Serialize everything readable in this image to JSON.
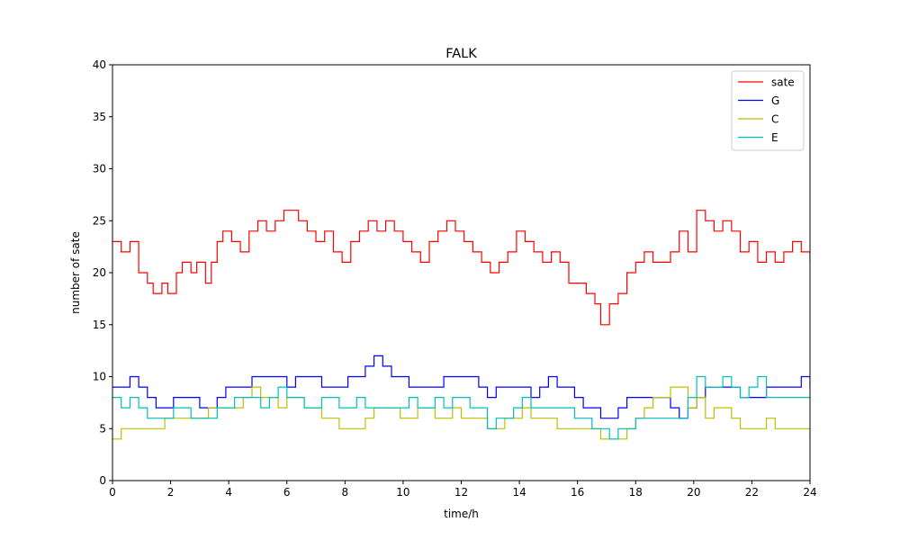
{
  "chart_data": {
    "type": "line",
    "title": "FALK",
    "xlabel": "time/h",
    "ylabel": "number of sate",
    "xlim": [
      0,
      24
    ],
    "ylim": [
      0,
      40
    ],
    "xticks": [
      0,
      2,
      4,
      6,
      8,
      10,
      12,
      14,
      16,
      18,
      20,
      22,
      24
    ],
    "yticks": [
      0,
      5,
      10,
      15,
      20,
      25,
      30,
      35,
      40
    ],
    "grid": false,
    "legend_position": "top-right",
    "series": [
      {
        "name": "sate",
        "color": "#ff0000",
        "x": [
          0,
          0.3,
          0.6,
          0.9,
          1.2,
          1.4,
          1.7,
          1.9,
          2.2,
          2.4,
          2.7,
          2.9,
          3.2,
          3.4,
          3.6,
          3.8,
          4.1,
          4.4,
          4.7,
          5.0,
          5.3,
          5.6,
          5.9,
          6.1,
          6.4,
          6.7,
          7.0,
          7.3,
          7.6,
          7.9,
          8.2,
          8.5,
          8.8,
          9.1,
          9.4,
          9.7,
          10.0,
          10.3,
          10.6,
          10.9,
          11.2,
          11.5,
          11.8,
          12.1,
          12.4,
          12.7,
          13.0,
          13.3,
          13.6,
          13.9,
          14.2,
          14.5,
          14.8,
          15.1,
          15.4,
          15.7,
          16.0,
          16.3,
          16.6,
          16.8,
          17.1,
          17.4,
          17.7,
          18.0,
          18.3,
          18.6,
          18.9,
          19.2,
          19.5,
          19.8,
          20.1,
          20.4,
          20.7,
          21.0,
          21.3,
          21.6,
          21.9,
          22.2,
          22.5,
          22.8,
          23.1,
          23.4,
          23.7,
          24.0
        ],
        "values": [
          23,
          22,
          23,
          20,
          19,
          18,
          19,
          18,
          20,
          21,
          20,
          21,
          19,
          21,
          23,
          24,
          23,
          22,
          24,
          25,
          24,
          25,
          26,
          26,
          25,
          24,
          23,
          24,
          22,
          21,
          23,
          24,
          25,
          24,
          25,
          24,
          23,
          22,
          21,
          23,
          24,
          25,
          24,
          23,
          22,
          21,
          20,
          21,
          22,
          24,
          23,
          22,
          21,
          22,
          21,
          19,
          19,
          18,
          17,
          15,
          17,
          18,
          20,
          21,
          22,
          21,
          21,
          22,
          24,
          22,
          26,
          25,
          24,
          25,
          24,
          22,
          23,
          21,
          22,
          21,
          22,
          23,
          22,
          21
        ]
      },
      {
        "name": "G",
        "color": "#0000ff",
        "x": [
          0,
          0.3,
          0.6,
          0.9,
          1.2,
          1.5,
          1.8,
          2.1,
          2.4,
          2.7,
          3.0,
          3.3,
          3.6,
          3.9,
          4.2,
          4.5,
          4.8,
          5.1,
          5.4,
          5.7,
          6.0,
          6.3,
          6.6,
          6.9,
          7.2,
          7.5,
          7.8,
          8.1,
          8.4,
          8.7,
          9.0,
          9.3,
          9.6,
          9.9,
          10.2,
          10.5,
          10.8,
          11.1,
          11.4,
          11.7,
          12.0,
          12.3,
          12.6,
          12.9,
          13.2,
          13.5,
          13.8,
          14.1,
          14.4,
          14.7,
          15.0,
          15.3,
          15.6,
          15.9,
          16.2,
          16.5,
          16.8,
          17.1,
          17.4,
          17.7,
          18.0,
          18.3,
          18.6,
          18.9,
          19.2,
          19.5,
          19.8,
          20.1,
          20.4,
          20.7,
          21.0,
          21.3,
          21.6,
          21.9,
          22.2,
          22.5,
          22.8,
          23.1,
          23.4,
          23.7,
          24.0
        ],
        "values": [
          9,
          9,
          10,
          9,
          8,
          7,
          7,
          8,
          8,
          8,
          7,
          7,
          8,
          9,
          9,
          9,
          10,
          10,
          10,
          10,
          9,
          10,
          10,
          10,
          9,
          9,
          9,
          10,
          10,
          11,
          12,
          11,
          10,
          10,
          9,
          9,
          9,
          9,
          10,
          10,
          10,
          10,
          9,
          8,
          9,
          9,
          9,
          9,
          8,
          9,
          10,
          9,
          9,
          8,
          7,
          7,
          6,
          6,
          7,
          8,
          8,
          8,
          8,
          8,
          7,
          6,
          7,
          8,
          9,
          9,
          9,
          9,
          8,
          8,
          8,
          9,
          9,
          9,
          9,
          10,
          9
        ]
      },
      {
        "name": "C",
        "color": "#bfbf00",
        "x": [
          0,
          0.3,
          0.6,
          0.9,
          1.2,
          1.5,
          1.8,
          2.1,
          2.4,
          2.7,
          3.0,
          3.3,
          3.6,
          3.9,
          4.2,
          4.5,
          4.8,
          5.1,
          5.4,
          5.7,
          6.0,
          6.3,
          6.6,
          6.9,
          7.2,
          7.5,
          7.8,
          8.1,
          8.4,
          8.7,
          9.0,
          9.3,
          9.6,
          9.9,
          10.2,
          10.5,
          10.8,
          11.1,
          11.4,
          11.7,
          12.0,
          12.3,
          12.6,
          12.9,
          13.2,
          13.5,
          13.8,
          14.1,
          14.4,
          14.7,
          15.0,
          15.3,
          15.6,
          15.9,
          16.2,
          16.5,
          16.8,
          17.1,
          17.4,
          17.7,
          18.0,
          18.3,
          18.6,
          18.9,
          19.2,
          19.5,
          19.8,
          20.1,
          20.4,
          20.7,
          21.0,
          21.3,
          21.6,
          21.9,
          22.2,
          22.5,
          22.8,
          23.1,
          23.4,
          23.7,
          24.0
        ],
        "values": [
          4,
          5,
          5,
          5,
          5,
          5,
          6,
          6,
          6,
          6,
          6,
          7,
          7,
          7,
          7,
          8,
          9,
          8,
          8,
          7,
          8,
          8,
          7,
          7,
          6,
          6,
          5,
          5,
          5,
          6,
          7,
          7,
          7,
          6,
          6,
          7,
          7,
          6,
          6,
          7,
          6,
          6,
          6,
          5,
          5,
          6,
          6,
          7,
          6,
          6,
          6,
          5,
          5,
          5,
          5,
          5,
          4,
          4,
          4,
          5,
          6,
          7,
          8,
          8,
          9,
          9,
          7,
          8,
          6,
          7,
          7,
          6,
          5,
          5,
          5,
          6,
          5,
          5,
          5,
          5,
          4
        ]
      },
      {
        "name": "E",
        "color": "#00bfbf",
        "x": [
          0,
          0.3,
          0.6,
          0.9,
          1.2,
          1.5,
          1.8,
          2.1,
          2.4,
          2.7,
          3.0,
          3.3,
          3.6,
          3.9,
          4.2,
          4.5,
          4.8,
          5.1,
          5.4,
          5.7,
          6.0,
          6.3,
          6.6,
          6.9,
          7.2,
          7.5,
          7.8,
          8.1,
          8.4,
          8.7,
          9.0,
          9.3,
          9.6,
          9.9,
          10.2,
          10.5,
          10.8,
          11.1,
          11.4,
          11.7,
          12.0,
          12.3,
          12.6,
          12.9,
          13.2,
          13.5,
          13.8,
          14.1,
          14.4,
          14.7,
          15.0,
          15.3,
          15.6,
          15.9,
          16.2,
          16.5,
          16.8,
          17.1,
          17.4,
          17.7,
          18.0,
          18.3,
          18.6,
          18.9,
          19.2,
          19.5,
          19.8,
          20.1,
          20.4,
          20.7,
          21.0,
          21.3,
          21.6,
          21.9,
          22.2,
          22.5,
          22.8,
          23.1,
          23.4,
          23.7,
          24.0
        ],
        "values": [
          8,
          7,
          8,
          7,
          6,
          6,
          6,
          7,
          7,
          6,
          6,
          6,
          7,
          7,
          8,
          8,
          8,
          7,
          8,
          9,
          8,
          8,
          7,
          7,
          8,
          8,
          7,
          7,
          8,
          7,
          7,
          7,
          7,
          7,
          8,
          7,
          7,
          8,
          7,
          8,
          8,
          7,
          7,
          5,
          6,
          6,
          7,
          8,
          7,
          7,
          7,
          7,
          7,
          6,
          6,
          5,
          5,
          4,
          5,
          5,
          6,
          6,
          6,
          6,
          6,
          6,
          8,
          10,
          9,
          9,
          10,
          9,
          8,
          9,
          10,
          8,
          8,
          8,
          8,
          8,
          8
        ]
      }
    ]
  }
}
